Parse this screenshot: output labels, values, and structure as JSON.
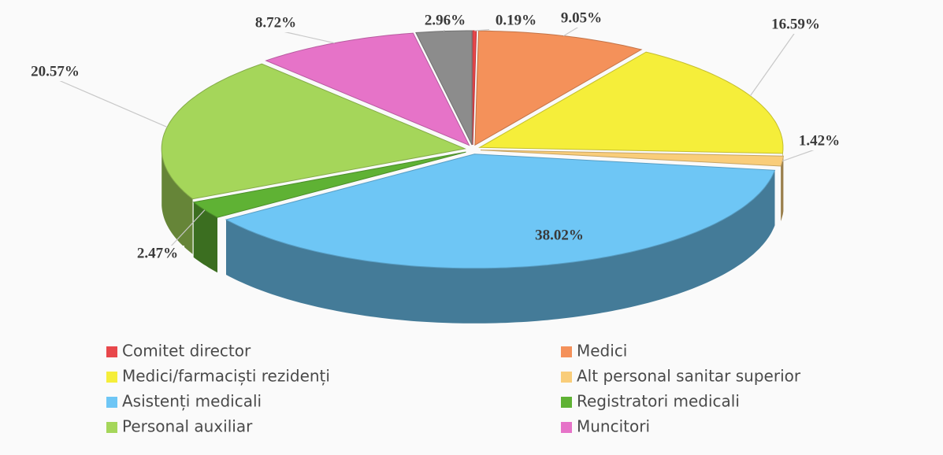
{
  "chart_data": {
    "type": "pie3d",
    "categories": [
      "Comitet director",
      "Medici",
      "Medici/farmaciști rezidenți",
      "Alt personal sanitar superior",
      "Asistenți medicali",
      "Registratori medicali",
      "Personal auxiliar",
      "Muncitori",
      null
    ],
    "values": [
      0.19,
      9.05,
      16.59,
      1.42,
      38.02,
      2.47,
      20.57,
      8.72,
      2.96
    ],
    "value_labels": [
      "0.19%",
      "9.05%",
      "16.59%",
      "1.42%",
      "38.02%",
      "2.47%",
      "20.57%",
      "8.72%",
      "2.96%"
    ],
    "colors": [
      "#e8474b",
      "#f4915a",
      "#f5ee3a",
      "#f9cd7a",
      "#6ec6f5",
      "#5fb234",
      "#a5d65a",
      "#e673c8",
      "#8c8c8c"
    ],
    "legend": "bottom"
  }
}
